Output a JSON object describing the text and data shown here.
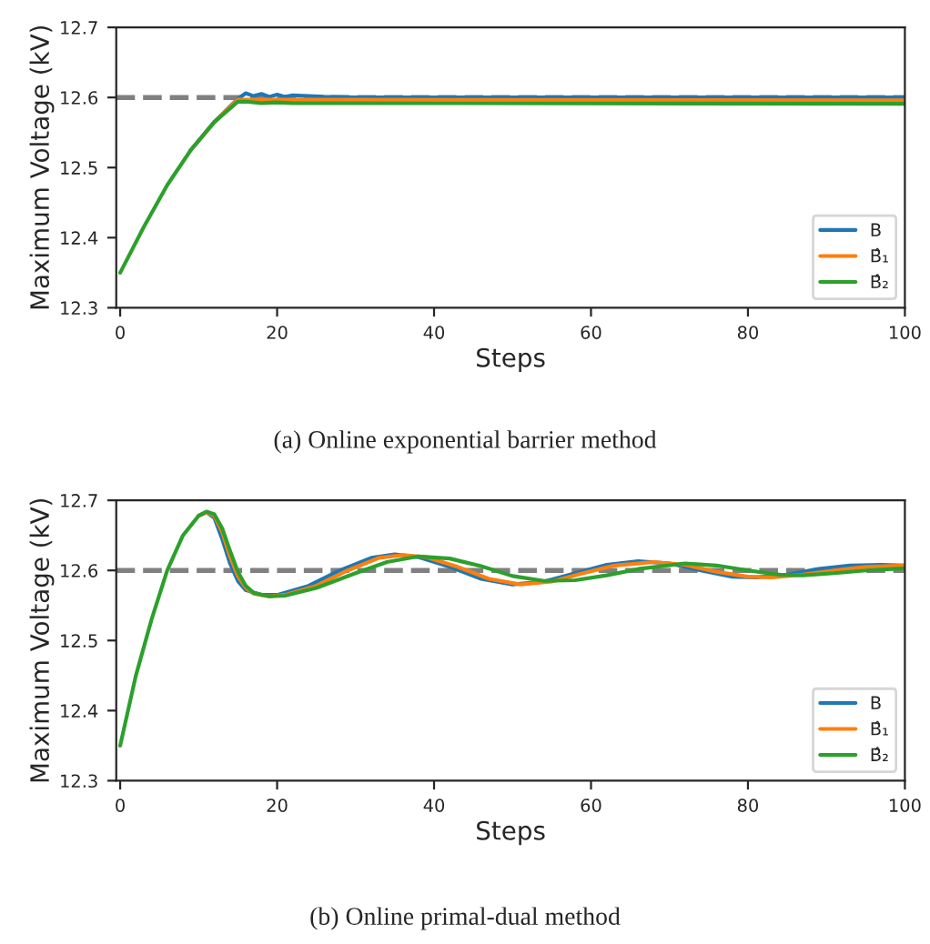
{
  "chart_data": [
    {
      "type": "line",
      "title": "(a) Online exponential barrier method",
      "xlabel": "Steps",
      "ylabel": "Maximum Voltage (kV)",
      "xlim": [
        -0.5,
        100
      ],
      "xticks": [
        0,
        20,
        40,
        60,
        80,
        100
      ],
      "ylim": [
        12.3,
        12.7
      ],
      "yticks": [
        12.3,
        12.4,
        12.5,
        12.6,
        12.7
      ],
      "legend": "bottom right",
      "line_style": "solid",
      "ref_lines": [
        {
          "axis": "y",
          "value": 12.6,
          "color": "#808080",
          "line_style": "dashed"
        }
      ],
      "series": [
        {
          "name": "B",
          "color": "#1f77b4",
          "x": [
            9,
            12,
            15,
            16,
            17,
            18,
            19,
            20,
            21,
            22,
            24,
            26,
            30,
            100
          ],
          "values": [
            12.525,
            12.565,
            12.598,
            12.606,
            12.602,
            12.605,
            12.601,
            12.604,
            12.601,
            12.603,
            12.602,
            12.601,
            12.6,
            12.6
          ]
        },
        {
          "name": "B̂₁",
          "color": "#ff7f0e",
          "x": [
            9,
            12,
            15,
            20,
            100
          ],
          "values": [
            12.525,
            12.565,
            12.597,
            12.597,
            12.596
          ]
        },
        {
          "name": "B̂₂",
          "color": "#2ca02c",
          "x": [
            0,
            3,
            6,
            9,
            12,
            15,
            16,
            18,
            20,
            22,
            30,
            100
          ],
          "values": [
            12.35,
            12.415,
            12.475,
            12.525,
            12.565,
            12.594,
            12.594,
            12.592,
            12.593,
            12.592,
            12.592,
            12.591
          ]
        }
      ]
    },
    {
      "type": "line",
      "title": "(b) Online primal-dual method",
      "xlabel": "Steps",
      "ylabel": "Maximum Voltage (kV)",
      "xlim": [
        -0.5,
        100
      ],
      "xticks": [
        0,
        20,
        40,
        60,
        80,
        100
      ],
      "ylim": [
        12.3,
        12.7
      ],
      "yticks": [
        12.3,
        12.4,
        12.5,
        12.6,
        12.7
      ],
      "legend": "bottom right",
      "line_style": "solid",
      "ref_lines": [
        {
          "axis": "y",
          "value": 12.6,
          "color": "#808080",
          "line_style": "dashed"
        }
      ],
      "series": [
        {
          "name": "B",
          "color": "#1f77b4",
          "x": [
            10,
            11,
            12,
            13,
            14,
            15,
            16,
            18,
            20,
            24,
            28,
            32,
            35,
            38,
            42,
            46,
            50,
            54,
            58,
            62,
            66,
            70,
            74,
            78,
            81,
            85,
            89,
            93,
            97,
            100
          ],
          "values": [
            12.678,
            12.683,
            12.675,
            12.645,
            12.61,
            12.585,
            12.572,
            12.565,
            12.565,
            12.578,
            12.6,
            12.618,
            12.623,
            12.619,
            12.605,
            12.588,
            12.58,
            12.584,
            12.596,
            12.608,
            12.613,
            12.61,
            12.6,
            12.591,
            12.59,
            12.594,
            12.602,
            12.607,
            12.608,
            12.607
          ]
        },
        {
          "name": "B̂₁",
          "color": "#ff7f0e",
          "x": [
            10,
            11,
            12,
            13,
            14,
            15,
            16,
            17,
            19,
            21,
            25,
            29,
            33,
            36,
            39,
            43,
            47,
            51,
            55,
            59,
            63,
            68,
            72,
            76,
            80,
            83,
            87,
            91,
            95,
            100
          ],
          "values": [
            12.678,
            12.683,
            12.678,
            12.655,
            12.62,
            12.592,
            12.575,
            12.567,
            12.563,
            12.565,
            12.578,
            12.6,
            12.618,
            12.622,
            12.619,
            12.605,
            12.588,
            12.58,
            12.584,
            12.596,
            12.607,
            12.612,
            12.608,
            12.598,
            12.591,
            12.59,
            12.594,
            12.6,
            12.605,
            12.607
          ]
        },
        {
          "name": "B̂₂",
          "color": "#2ca02c",
          "x": [
            0,
            2,
            4,
            6,
            8,
            10,
            11,
            12,
            13,
            14,
            15,
            16,
            17,
            19,
            21,
            25,
            30,
            34,
            38,
            42,
            46,
            50,
            54,
            58,
            62,
            66,
            72,
            76,
            80,
            84,
            87,
            91,
            95,
            100
          ],
          "values": [
            12.35,
            12.45,
            12.53,
            12.6,
            12.65,
            12.678,
            12.684,
            12.68,
            12.66,
            12.628,
            12.598,
            12.578,
            12.568,
            12.563,
            12.564,
            12.575,
            12.596,
            12.612,
            12.62,
            12.617,
            12.606,
            12.592,
            12.585,
            12.586,
            12.593,
            12.602,
            12.61,
            12.607,
            12.6,
            12.594,
            12.593,
            12.596,
            12.6,
            12.603
          ]
        }
      ]
    }
  ]
}
